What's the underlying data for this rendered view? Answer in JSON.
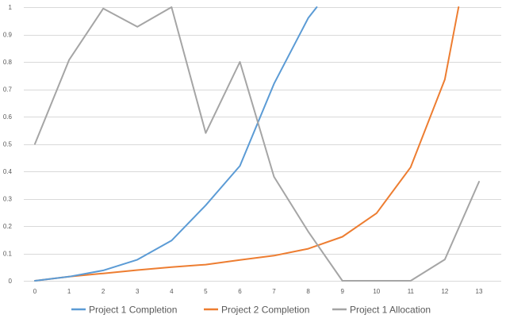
{
  "chart_data": {
    "type": "line",
    "title": "",
    "xlabel": "",
    "ylabel": "",
    "x": [
      0,
      1,
      2,
      3,
      4,
      5,
      6,
      7,
      8,
      9,
      10,
      11,
      12,
      13
    ],
    "x_ticks": [
      "0",
      "1",
      "2",
      "3",
      "4",
      "5",
      "6",
      "7",
      "8",
      "9",
      "10",
      "11",
      "12",
      "13"
    ],
    "y_ticks": [
      "0",
      "0.1",
      "0.2",
      "0.3",
      "0.4",
      "0.5",
      "0.6",
      "0.7",
      "0.8",
      "0.9",
      "1"
    ],
    "ylim": [
      0,
      1
    ],
    "grid": "horizontal",
    "legend_position": "bottom",
    "series": [
      {
        "name": "Project 1 Completion",
        "color": "#5b9bd5",
        "x": [
          0,
          1,
          2,
          3,
          4,
          5,
          6,
          7,
          8,
          8.25
        ],
        "y": [
          0,
          0.015,
          0.038,
          0.077,
          0.147,
          0.276,
          0.42,
          0.72,
          0.96,
          1.0
        ]
      },
      {
        "name": "Project 2 Completion",
        "color": "#ed7d31",
        "x": [
          0,
          1,
          2,
          3,
          4,
          5,
          6,
          7,
          8,
          9,
          10,
          11,
          12,
          12.4
        ],
        "y": [
          0,
          0.015,
          0.027,
          0.039,
          0.05,
          0.059,
          0.076,
          0.092,
          0.117,
          0.161,
          0.247,
          0.415,
          0.736,
          1.0
        ]
      },
      {
        "name": "Project 1 Allocation",
        "color": "#a5a5a5",
        "x": [
          0,
          1,
          2,
          3,
          4,
          5,
          6,
          7,
          8,
          9,
          10,
          11,
          12,
          13
        ],
        "y": [
          0.5,
          0.807,
          0.995,
          0.928,
          1.0,
          0.54,
          0.8,
          0.38,
          0.18,
          0,
          0,
          0,
          0.078,
          0.362
        ]
      }
    ]
  }
}
